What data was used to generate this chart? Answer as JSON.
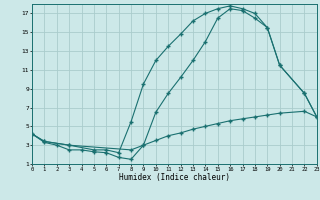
{
  "xlabel": "Humidex (Indice chaleur)",
  "bg_color": "#cce8e8",
  "grid_color": "#aacccc",
  "line_color": "#1a7070",
  "xlim": [
    0,
    23
  ],
  "ylim": [
    1,
    18
  ],
  "xticks": [
    0,
    1,
    2,
    3,
    4,
    5,
    6,
    7,
    8,
    9,
    10,
    11,
    12,
    13,
    14,
    15,
    16,
    17,
    18,
    19,
    20,
    21,
    22,
    23
  ],
  "yticks": [
    1,
    3,
    5,
    7,
    9,
    11,
    13,
    15,
    17
  ],
  "line1_x": [
    0,
    1,
    2,
    3,
    4,
    5,
    6,
    7,
    8,
    9,
    10,
    11,
    12,
    13,
    14,
    15,
    16,
    17,
    18,
    19,
    20,
    22,
    23
  ],
  "line1_y": [
    4.2,
    3.3,
    3.0,
    2.5,
    2.5,
    2.3,
    2.2,
    1.7,
    1.5,
    3.0,
    3.5,
    4.0,
    4.3,
    4.7,
    5.0,
    5.3,
    5.6,
    5.8,
    6.0,
    6.2,
    6.4,
    6.6,
    6.0
  ],
  "line2_x": [
    0,
    1,
    3,
    5,
    6,
    7,
    8,
    9,
    10,
    11,
    12,
    13,
    14,
    15,
    16,
    17,
    18,
    19,
    20,
    22,
    23
  ],
  "line2_y": [
    4.2,
    3.4,
    3.0,
    2.5,
    2.5,
    2.2,
    5.5,
    9.5,
    12.0,
    13.5,
    14.8,
    16.2,
    17.0,
    17.5,
    17.8,
    17.5,
    17.0,
    15.5,
    11.5,
    8.5,
    6.0
  ],
  "line3_x": [
    0,
    1,
    3,
    8,
    9,
    10,
    11,
    12,
    13,
    14,
    15,
    16,
    17,
    18,
    19,
    20,
    22,
    23
  ],
  "line3_y": [
    4.2,
    3.4,
    3.0,
    2.5,
    3.0,
    6.5,
    8.5,
    10.2,
    12.0,
    14.0,
    16.5,
    17.5,
    17.3,
    16.5,
    15.5,
    11.5,
    8.5,
    6.0
  ]
}
